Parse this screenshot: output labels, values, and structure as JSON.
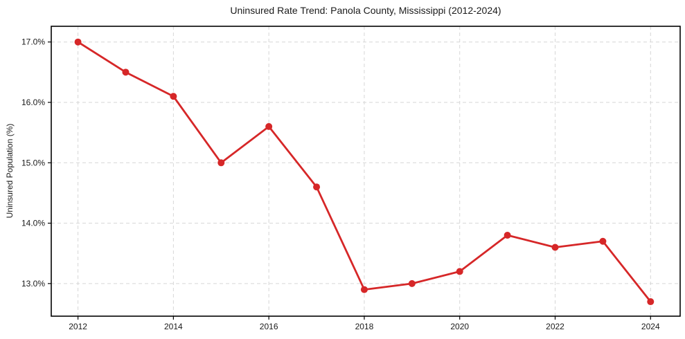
{
  "figure": {
    "title": "Uninsured Rate Trend: Panola County, Mississippi (2012-2024)",
    "y_axis_label": "Uninsured Population (%)"
  },
  "chart_data": {
    "type": "line",
    "title": "Uninsured Rate Trend: Panola County, Mississippi (2012-2024)",
    "xlabel": "",
    "ylabel": "Uninsured Population (%)",
    "x": [
      2012,
      2013,
      2014,
      2015,
      2016,
      2017,
      2018,
      2019,
      2020,
      2021,
      2022,
      2023,
      2024
    ],
    "values": [
      17.0,
      16.5,
      16.1,
      15.0,
      15.6,
      14.6,
      12.9,
      13.0,
      13.2,
      13.8,
      13.6,
      13.7,
      12.7
    ],
    "x_ticks": [
      2012,
      2014,
      2016,
      2018,
      2020,
      2022,
      2024
    ],
    "x_tick_labels": [
      "2012",
      "2014",
      "2016",
      "2018",
      "2020",
      "2022",
      "2024"
    ],
    "y_ticks": [
      13.0,
      14.0,
      15.0,
      16.0,
      17.0
    ],
    "y_tick_labels": [
      "13.0%",
      "14.0%",
      "15.0%",
      "16.0%",
      "17.0%"
    ],
    "xlim": [
      2011.44,
      2024.62
    ],
    "ylim": [
      12.46,
      17.26
    ],
    "grid": true,
    "grid_style": "dashed",
    "legend_position": "none",
    "line_color": "#d62728",
    "marker": "circle",
    "background_color": "#ffffff"
  }
}
